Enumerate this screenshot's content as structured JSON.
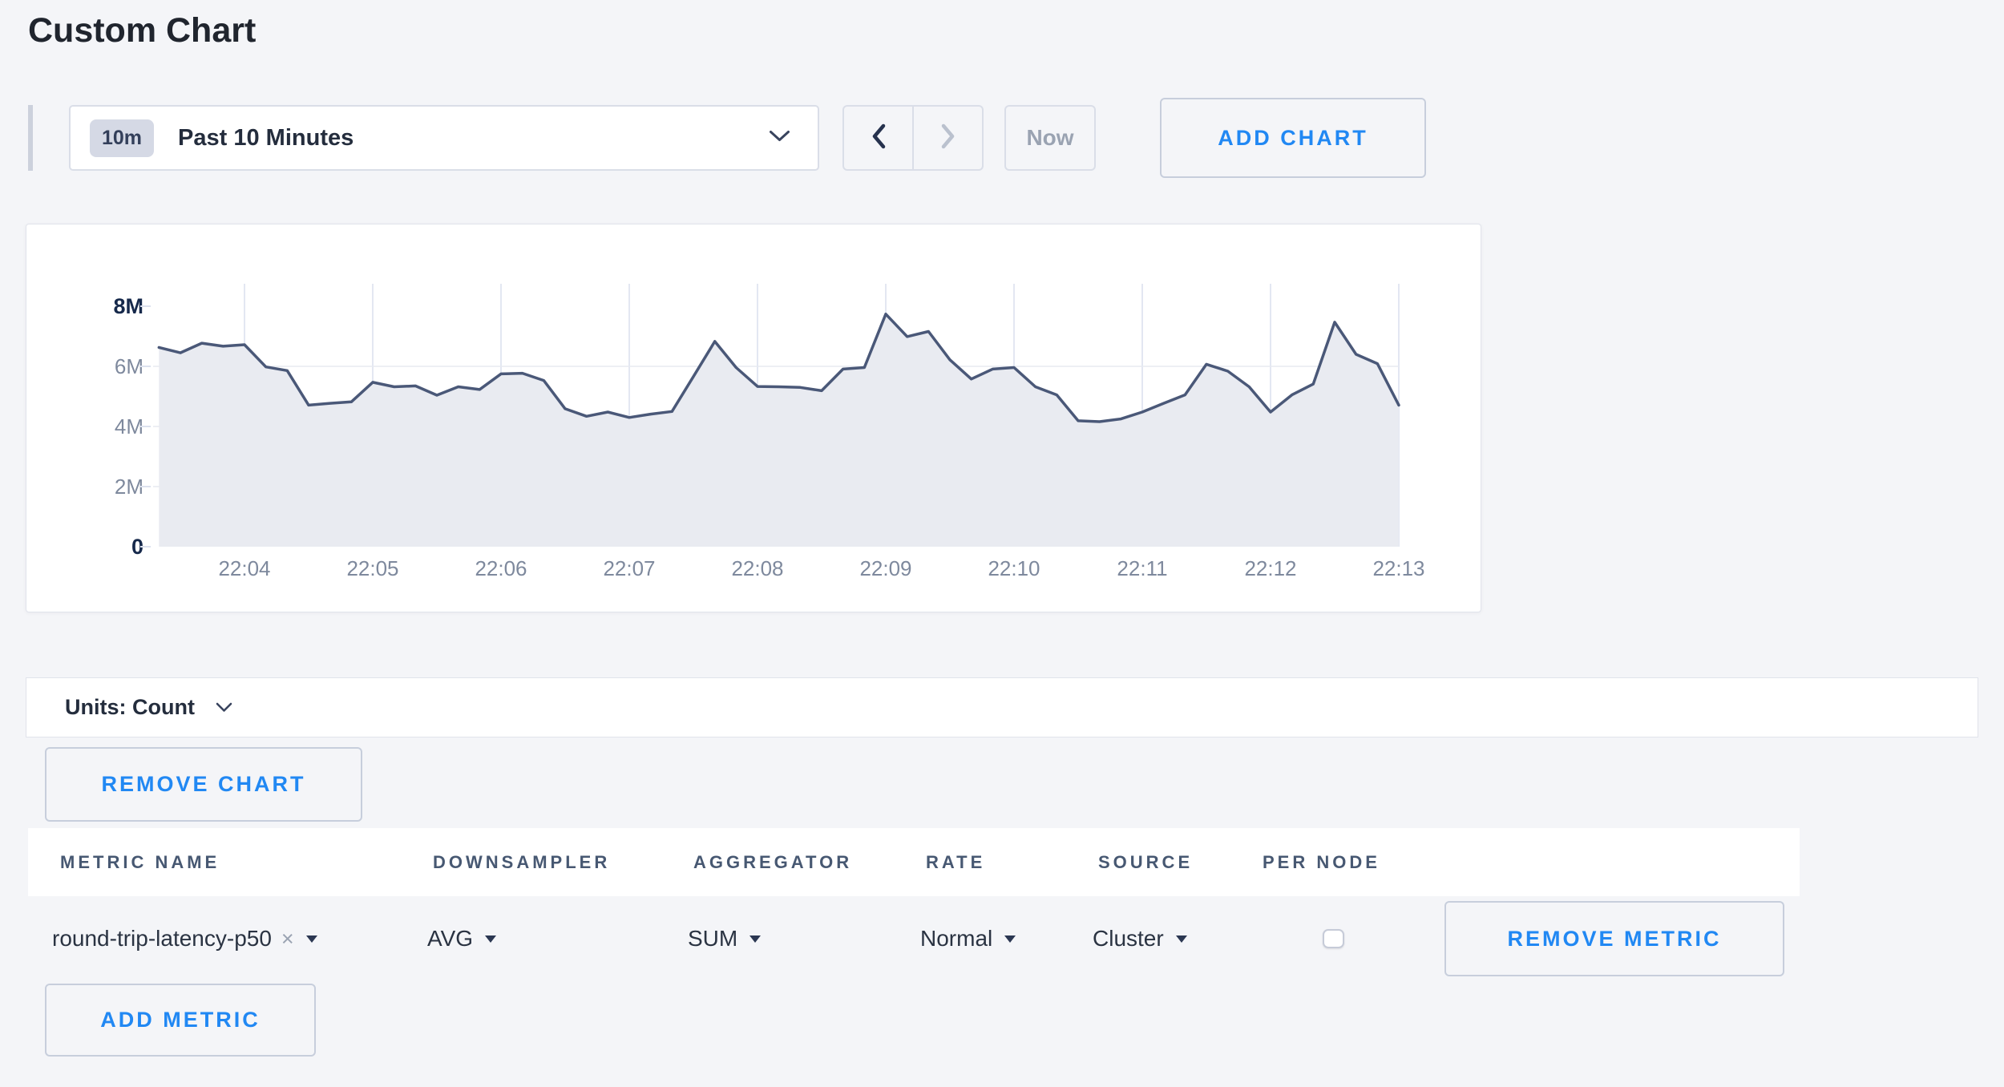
{
  "page": {
    "title": "Custom Chart"
  },
  "colors": {
    "accent_blue": "#2188f3",
    "line": "#4a5878",
    "fill": "#e9ebf1",
    "grid_vertical": "#dce1ee",
    "grid_horizontal": "#e7eaf1",
    "page_bg": "#f4f5f8"
  },
  "toolbar": {
    "range_badge": "10m",
    "range_label": "Past 10 Minutes",
    "now_label": "Now",
    "add_chart_label": "ADD CHART"
  },
  "chart": {
    "units_label": "Units: Count",
    "remove_chart_label": "REMOVE CHART"
  },
  "chart_data": {
    "type": "area",
    "y_unit": "count",
    "ylim": [
      0,
      8
    ],
    "yticks": [
      "0",
      "2M",
      "4M",
      "6M",
      "8M"
    ],
    "xticks": [
      "22:04",
      "22:05",
      "22:06",
      "22:07",
      "22:08",
      "22:09",
      "22:10",
      "22:11",
      "22:12",
      "22:13"
    ],
    "grid": true,
    "legend": false,
    "series_name": "round-trip-latency-p50",
    "x_times": [
      "22:03:20",
      "22:03:30",
      "22:03:40",
      "22:03:50",
      "22:04:00",
      "22:04:10",
      "22:04:20",
      "22:04:30",
      "22:04:40",
      "22:04:50",
      "22:05:00",
      "22:05:10",
      "22:05:20",
      "22:05:30",
      "22:05:40",
      "22:05:50",
      "22:06:00",
      "22:06:10",
      "22:06:20",
      "22:06:30",
      "22:06:40",
      "22:06:50",
      "22:07:00",
      "22:07:10",
      "22:07:20",
      "22:07:30",
      "22:07:40",
      "22:07:50",
      "22:08:00",
      "22:08:10",
      "22:08:20",
      "22:08:30",
      "22:08:40",
      "22:08:50",
      "22:09:00",
      "22:09:10",
      "22:09:20",
      "22:09:30",
      "22:09:40",
      "22:09:50",
      "22:10:00",
      "22:10:10",
      "22:10:20",
      "22:10:30",
      "22:10:40",
      "22:10:50",
      "22:11:00",
      "22:11:10",
      "22:11:20",
      "22:11:30",
      "22:11:40",
      "22:11:50",
      "22:12:00",
      "22:12:10",
      "22:12:20",
      "22:12:30",
      "22:12:40",
      "22:12:50",
      "22:13:00"
    ],
    "values_millions": [
      6.63,
      6.45,
      6.77,
      6.67,
      6.72,
      5.98,
      5.86,
      4.71,
      4.77,
      4.82,
      5.47,
      5.32,
      5.35,
      5.04,
      5.32,
      5.23,
      5.75,
      5.77,
      5.53,
      4.59,
      4.34,
      4.48,
      4.3,
      4.41,
      4.5,
      5.66,
      6.83,
      5.96,
      5.33,
      5.32,
      5.3,
      5.19,
      5.91,
      5.96,
      7.74,
      6.99,
      7.16,
      6.22,
      5.58,
      5.91,
      5.96,
      5.32,
      5.05,
      4.19,
      4.16,
      4.25,
      4.48,
      4.77,
      5.05,
      6.07,
      5.84,
      5.32,
      4.48,
      5.05,
      5.41,
      7.47,
      6.4,
      6.09,
      4.71
    ]
  },
  "metrics_table": {
    "headers": [
      "METRIC NAME",
      "DOWNSAMPLER",
      "AGGREGATOR",
      "RATE",
      "SOURCE",
      "PER NODE"
    ],
    "row": {
      "metric_name": "round-trip-latency-p50",
      "clear_label": "×",
      "downsampler": "AVG",
      "aggregator": "SUM",
      "rate": "Normal",
      "source": "Cluster",
      "per_node_checked": false,
      "remove_metric_label": "REMOVE METRIC"
    },
    "add_metric_label": "ADD METRIC"
  }
}
